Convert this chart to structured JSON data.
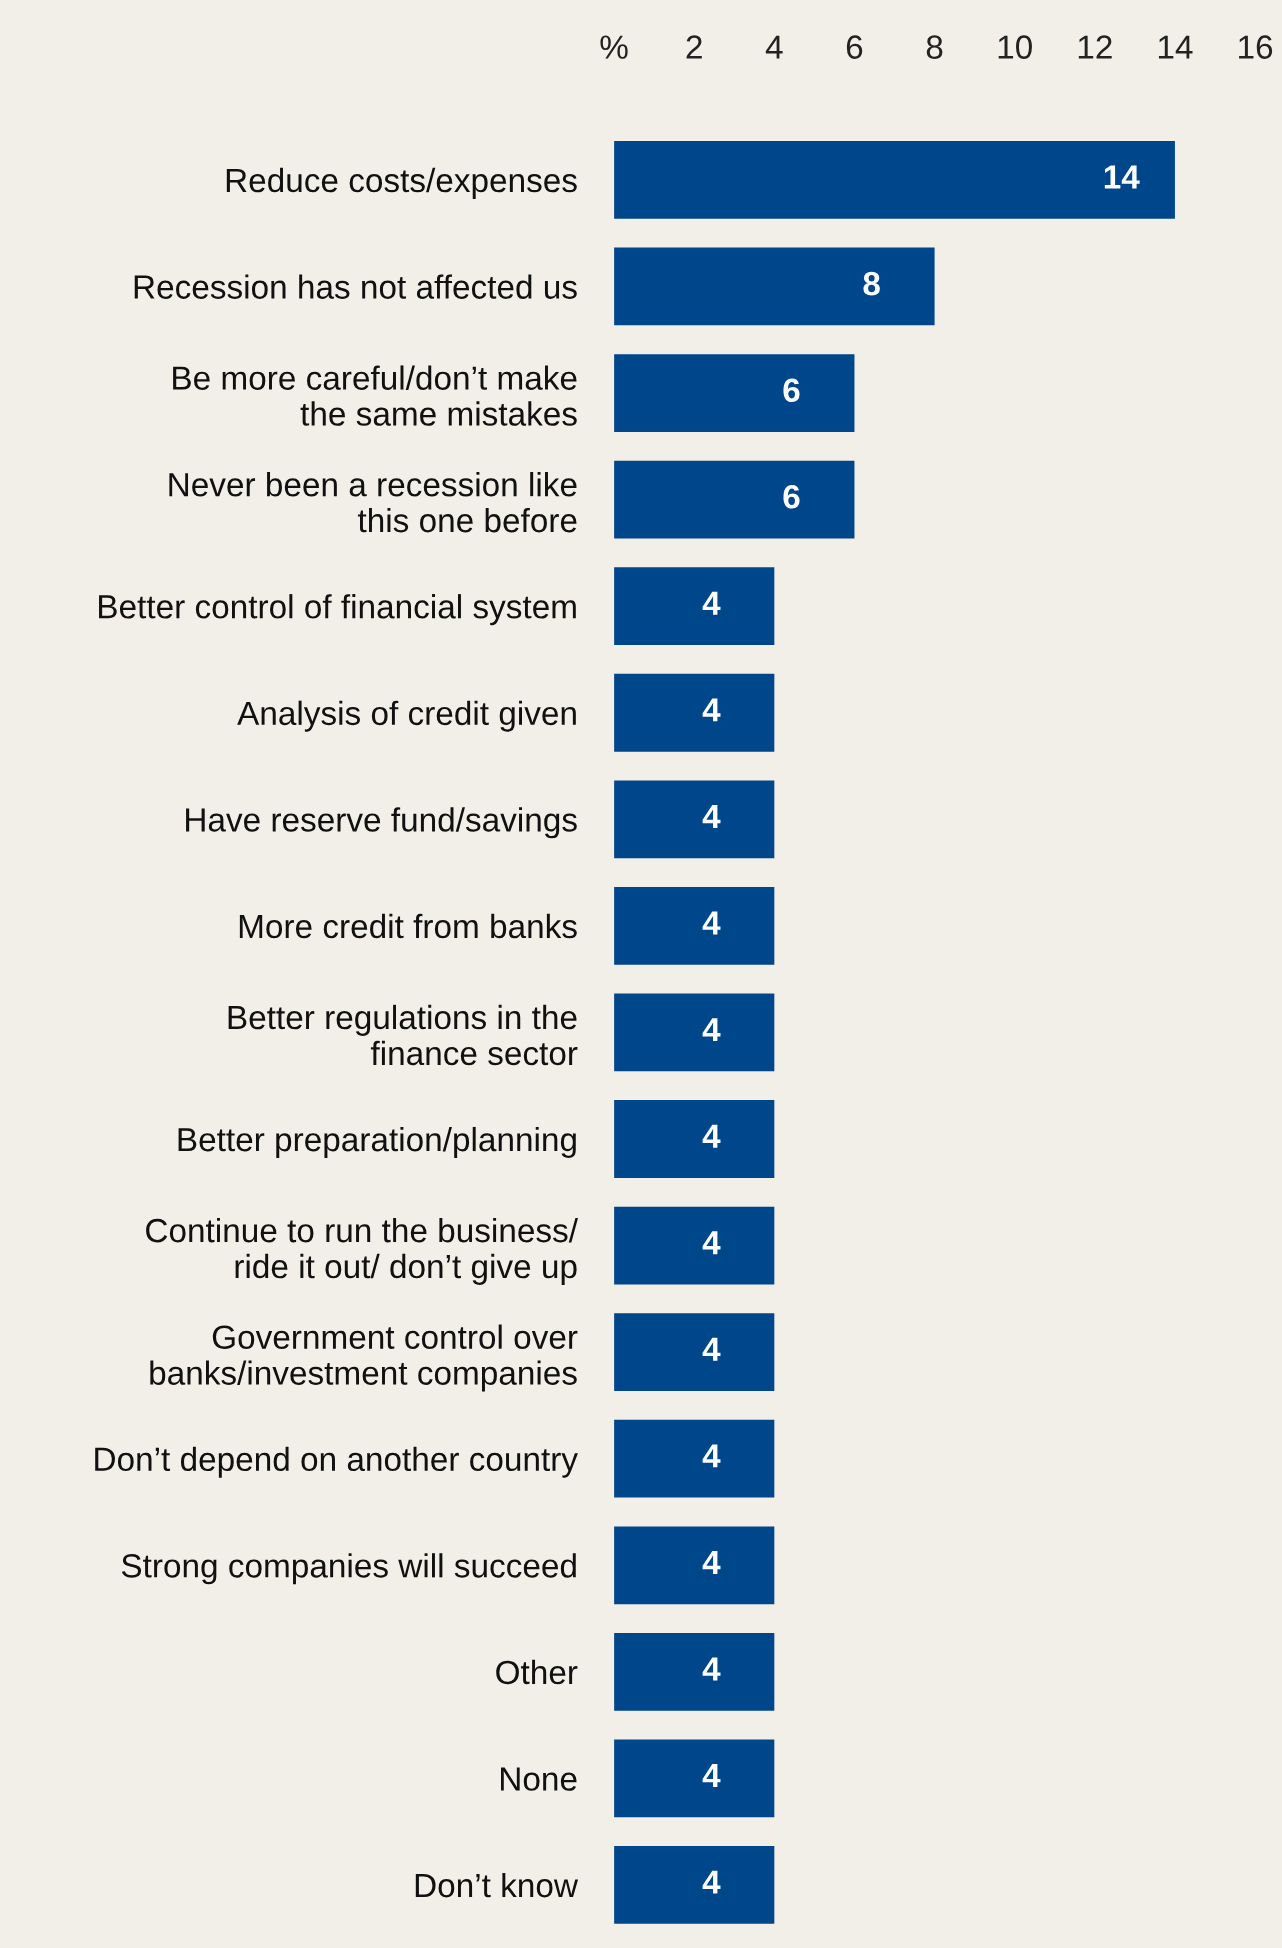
{
  "chart_data": {
    "type": "bar",
    "orientation": "horizontal",
    "categories": [
      "Reduce costs/expenses",
      "Recession has not affected us",
      "Be more careful/don’t make\nthe same mistakes",
      "Never been a recession like\nthis one before",
      "Better control of financial system",
      "Analysis of credit given",
      "Have reserve fund/savings",
      "More credit from banks",
      "Better regulations in the\nfinance sector",
      "Better preparation/planning",
      "Continue to run the business/\nride it out/ don’t give up",
      "Government control over\nbanks/investment companies",
      "Don’t depend on another country",
      "Strong companies will succeed",
      "Other",
      "None",
      "Don’t know"
    ],
    "values": [
      14,
      8,
      6,
      6,
      4,
      4,
      4,
      4,
      4,
      4,
      4,
      4,
      4,
      4,
      4,
      4,
      4
    ],
    "color": "#00468b",
    "xlim": [
      0,
      16
    ],
    "xticks": [
      {
        "value": 0,
        "label": "%"
      },
      2,
      4,
      6,
      8,
      10,
      12,
      14,
      16
    ],
    "data_labels": true,
    "grid": false,
    "legend": false
  }
}
